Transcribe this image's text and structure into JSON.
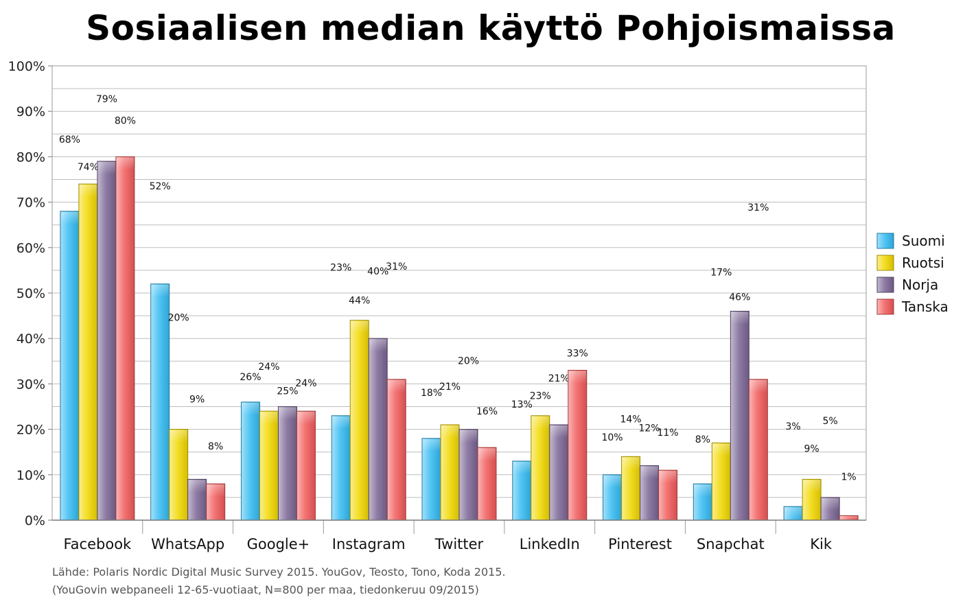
{
  "chart_data": {
    "type": "bar",
    "title": "Sosiaalisen median käyttö Pohjoismaissa",
    "categories": [
      "Facebook",
      "WhatsApp",
      "Google+",
      "Instagram",
      "Twitter",
      "LinkedIn",
      "Pinterest",
      "Snapchat",
      "Kik"
    ],
    "series": [
      {
        "name": "Suomi",
        "color": "#33bbf2",
        "values": [
          68,
          52,
          26,
          23,
          18,
          13,
          10,
          8,
          3
        ]
      },
      {
        "name": "Ruotsi",
        "color": "#f2d800",
        "values": [
          74,
          20,
          24,
          44,
          21,
          23,
          14,
          17,
          9
        ]
      },
      {
        "name": "Norja",
        "color": "#7a6594",
        "values": [
          79,
          9,
          25,
          40,
          20,
          21,
          12,
          46,
          5
        ]
      },
      {
        "name": "Tanska",
        "color": "#f25a5a",
        "values": [
          80,
          8,
          24,
          31,
          16,
          33,
          11,
          31,
          1
        ]
      }
    ],
    "y_ticks": [
      "0%",
      "10%",
      "20%",
      "30%",
      "40%",
      "50%",
      "60%",
      "70%",
      "80%",
      "90%",
      "100%"
    ],
    "ylim": [
      0,
      100
    ],
    "grid": true,
    "legend_position": "right",
    "source_lines": [
      "Lähde: Polaris Nordic Digital Music Survey 2015. YouGov, Teosto, Tono, Koda 2015.",
      "(YouGovin webpaneeli 12-65-vuotiaat, N=800 per maa, tiedonkeruu 09/2015)"
    ]
  }
}
